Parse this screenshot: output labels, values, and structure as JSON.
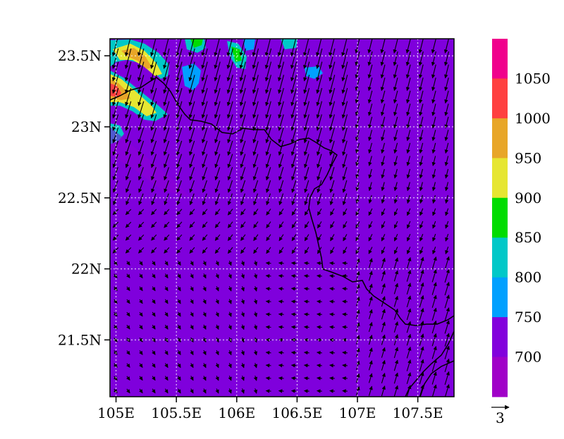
{
  "map": {
    "lat_ticks": [
      "23.5N",
      "23N",
      "22.5N",
      "22N",
      "21.5N"
    ],
    "lat_values": [
      23.5,
      23.0,
      22.5,
      22.0,
      21.5
    ],
    "lon_ticks": [
      "105E",
      "105.5E",
      "106E",
      "106.5E",
      "107E",
      "107.5E"
    ],
    "lon_values": [
      105.0,
      105.5,
      106.0,
      106.5,
      107.0,
      107.5
    ],
    "lon_range": [
      104.95,
      107.8
    ],
    "lat_range": [
      21.1,
      23.62
    ],
    "gridlines": true,
    "field_background_color": "#7f00dc",
    "colorbar": {
      "labels": [
        "1050",
        "1000",
        "950",
        "900",
        "850",
        "800",
        "750",
        "700"
      ],
      "levels": [
        {
          "color": "#f0008c"
        },
        {
          "color": "#ff4040"
        },
        {
          "color": "#e8a628"
        },
        {
          "color": "#e6e632"
        },
        {
          "color": "#00dc00"
        },
        {
          "color": "#00c8c8"
        },
        {
          "color": "#00a0ff"
        },
        {
          "color": "#8200dc"
        },
        {
          "color": "#a000c8"
        }
      ]
    },
    "reference_vector_label": "3"
  }
}
